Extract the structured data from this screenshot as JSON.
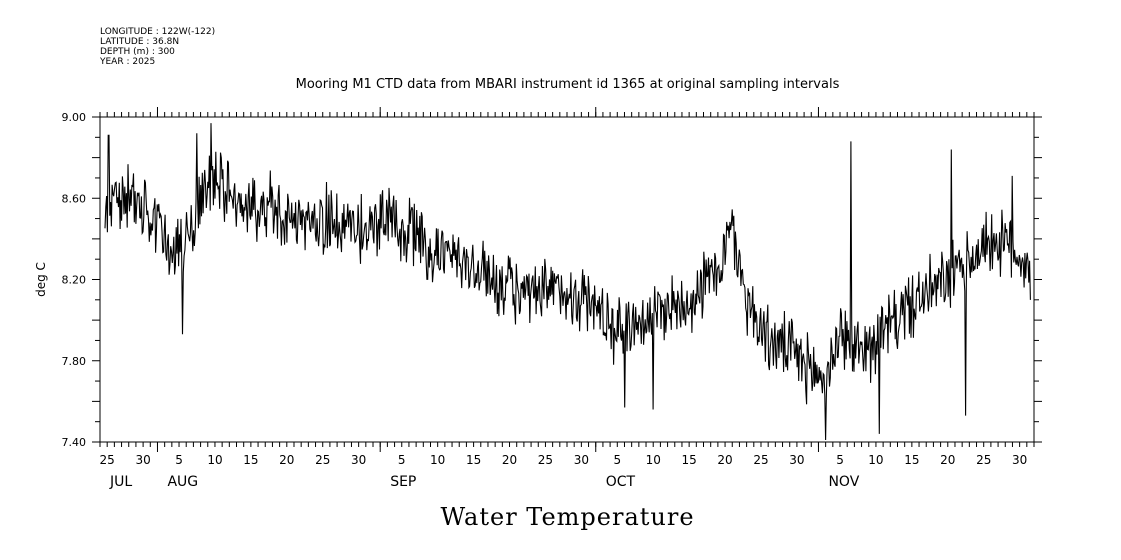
{
  "meta": {
    "longitude": "LONGITUDE : 122W(-122)",
    "latitude": "LATITUDE : 36.8N",
    "depth": "DEPTH (m) : 300",
    "year": "YEAR : 2025"
  },
  "chart_data": {
    "type": "line",
    "title": "Mooring M1 CTD data from MBARI instrument id 1365 at original sampling intervals",
    "xlabel": "Water Temperature",
    "ylabel": "deg C",
    "ylim": [
      7.4,
      9.0
    ],
    "yticks": [
      "9.00",
      "8.60",
      "8.20",
      "7.80",
      "7.40"
    ],
    "ytick_values": [
      9.0,
      8.6,
      8.2,
      7.8,
      7.4
    ],
    "xlim_days": [
      0,
      130
    ],
    "x_day_labels": [
      {
        "label": "25",
        "day": 1
      },
      {
        "label": "30",
        "day": 6
      },
      {
        "label": "5",
        "day": 11
      },
      {
        "label": "10",
        "day": 16
      },
      {
        "label": "15",
        "day": 21
      },
      {
        "label": "20",
        "day": 26
      },
      {
        "label": "25",
        "day": 31
      },
      {
        "label": "30",
        "day": 36
      },
      {
        "label": "5",
        "day": 42
      },
      {
        "label": "10",
        "day": 47
      },
      {
        "label": "15",
        "day": 52
      },
      {
        "label": "20",
        "day": 57
      },
      {
        "label": "25",
        "day": 62
      },
      {
        "label": "30",
        "day": 67
      },
      {
        "label": "5",
        "day": 72
      },
      {
        "label": "10",
        "day": 77
      },
      {
        "label": "15",
        "day": 82
      },
      {
        "label": "20",
        "day": 87
      },
      {
        "label": "25",
        "day": 92
      },
      {
        "label": "30",
        "day": 97
      },
      {
        "label": "5",
        "day": 103
      },
      {
        "label": "10",
        "day": 108
      },
      {
        "label": "15",
        "day": 113
      },
      {
        "label": "20",
        "day": 118
      },
      {
        "label": "25",
        "day": 123
      },
      {
        "label": "30",
        "day": 128
      }
    ],
    "months": [
      {
        "label": "JUL",
        "day": 0
      },
      {
        "label": "AUG",
        "day": 8
      },
      {
        "label": "SEP",
        "day": 39
      },
      {
        "label": "OCT",
        "day": 69
      },
      {
        "label": "NOV",
        "day": 100
      }
    ],
    "month_boundaries_days": [
      8,
      39,
      69,
      100
    ],
    "series": [
      {
        "name": "Water Temperature",
        "trend": [
          [
            0,
            8.55
          ],
          [
            3,
            8.6
          ],
          [
            6,
            8.55
          ],
          [
            9,
            8.4
          ],
          [
            11,
            8.35
          ],
          [
            13,
            8.45
          ],
          [
            15,
            8.7
          ],
          [
            17,
            8.65
          ],
          [
            20,
            8.55
          ],
          [
            24,
            8.55
          ],
          [
            28,
            8.5
          ],
          [
            32,
            8.48
          ],
          [
            36,
            8.45
          ],
          [
            40,
            8.5
          ],
          [
            44,
            8.42
          ],
          [
            48,
            8.32
          ],
          [
            52,
            8.25
          ],
          [
            56,
            8.18
          ],
          [
            60,
            8.1
          ],
          [
            64,
            8.15
          ],
          [
            68,
            8.1
          ],
          [
            72,
            7.95
          ],
          [
            75,
            8.0
          ],
          [
            78,
            8.05
          ],
          [
            82,
            8.1
          ],
          [
            86,
            8.25
          ],
          [
            88,
            8.45
          ],
          [
            90,
            8.1
          ],
          [
            93,
            7.9
          ],
          [
            96,
            7.85
          ],
          [
            99,
            7.75
          ],
          [
            101,
            7.7
          ],
          [
            103,
            7.95
          ],
          [
            105,
            7.85
          ],
          [
            108,
            7.9
          ],
          [
            112,
            8.05
          ],
          [
            116,
            8.15
          ],
          [
            120,
            8.25
          ],
          [
            124,
            8.4
          ],
          [
            127,
            8.35
          ],
          [
            130,
            8.25
          ]
        ],
        "extremes": [
          {
            "day": 1.2,
            "value": 8.91
          },
          {
            "day": 15.5,
            "value": 8.97
          },
          {
            "day": 13.5,
            "value": 8.92
          },
          {
            "day": 11.5,
            "value": 7.93
          },
          {
            "day": 77,
            "value": 7.56
          },
          {
            "day": 73,
            "value": 7.57
          },
          {
            "day": 104.5,
            "value": 8.88
          },
          {
            "day": 101,
            "value": 7.41
          },
          {
            "day": 108.5,
            "value": 7.44
          },
          {
            "day": 118.5,
            "value": 8.84
          },
          {
            "day": 120.5,
            "value": 7.53
          },
          {
            "day": 127,
            "value": 8.71
          }
        ],
        "amplitude": 0.17,
        "samples_per_day": 9
      }
    ]
  }
}
